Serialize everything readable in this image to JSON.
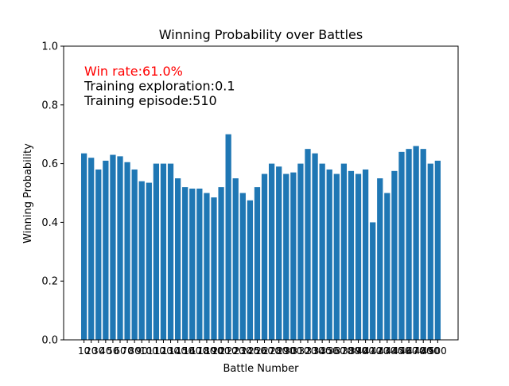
{
  "chart_data": {
    "type": "bar",
    "title": "Winning Probability over Battles",
    "xlabel": "Battle Number",
    "ylabel": "Winning Probability",
    "ylim": [
      0,
      1
    ],
    "yticks": [
      "0.0",
      "0.2",
      "0.4",
      "0.6",
      "0.8",
      "1.0"
    ],
    "grid": false,
    "bar_color": "#1f77b4",
    "categories": [
      "10",
      "20",
      "30",
      "40",
      "50",
      "60",
      "70",
      "80",
      "90",
      "100",
      "110",
      "120",
      "130",
      "140",
      "150",
      "160",
      "170",
      "180",
      "190",
      "200",
      "210",
      "220",
      "230",
      "240",
      "250",
      "260",
      "270",
      "280",
      "290",
      "300",
      "310",
      "320",
      "330",
      "340",
      "350",
      "360",
      "370",
      "380",
      "390",
      "400",
      "410",
      "420",
      "430",
      "440",
      "450",
      "460",
      "470",
      "480",
      "490",
      "500"
    ],
    "values": [
      0.635,
      0.62,
      0.58,
      0.61,
      0.63,
      0.625,
      0.605,
      0.58,
      0.54,
      0.535,
      0.6,
      0.6,
      0.6,
      0.55,
      0.52,
      0.515,
      0.515,
      0.5,
      0.485,
      0.52,
      0.7,
      0.55,
      0.5,
      0.475,
      0.52,
      0.565,
      0.6,
      0.59,
      0.565,
      0.57,
      0.6,
      0.65,
      0.635,
      0.6,
      0.58,
      0.565,
      0.6,
      0.575,
      0.565,
      0.58,
      0.4,
      0.55,
      0.5,
      0.575,
      0.64,
      0.65,
      0.66,
      0.65,
      0.6,
      0.61
    ],
    "annotations": [
      {
        "text": "Win rate:61.0%",
        "color": "#ff0000"
      },
      {
        "text": "Training exploration:0.1",
        "color": "#000000"
      },
      {
        "text": "Training episode:510",
        "color": "#000000"
      }
    ]
  }
}
